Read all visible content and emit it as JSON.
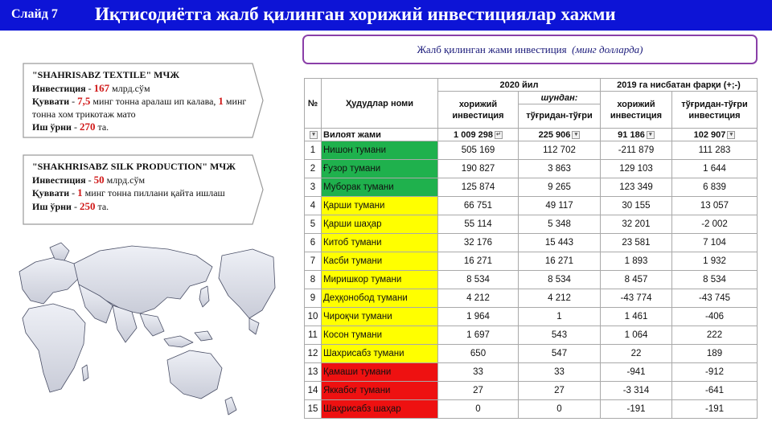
{
  "header": {
    "slide_label": "Слайд 7",
    "title": "Иқтисодиётга жалб қилинган хорижий инвестициялар хажми"
  },
  "subtitle": {
    "text": "Жалб қилинган жами инвестиция",
    "unit": "(минг долларда)"
  },
  "colors": {
    "header_bg": "#0d14d6",
    "green": "#1fb14d",
    "yellow": "#ffff00",
    "red": "#ee1111",
    "accent_number": "#d01818"
  },
  "callouts": [
    {
      "name": "\"SHAHRISABZ  TEXTILE\" МЧЖ",
      "invest_label": "Инвестиция",
      "invest_value": "167",
      "invest_unit": "млрд.сўм",
      "capacity_label": "Қуввати",
      "capacity_value": "7,5",
      "capacity_text": "минг тонна аралаш  ип калава,",
      "capacity_value2": "1",
      "capacity_text2": "минг тонна хом трикотаж мато",
      "jobs_label": "Иш ўрни",
      "jobs_value": "270",
      "jobs_unit": "та."
    },
    {
      "name": "\"SHAKHRISABZ  SILK PRODUCTION\" МЧЖ",
      "invest_label": "Инвестиция",
      "invest_value": "50",
      "invest_unit": "млрд.сўм",
      "capacity_label": "Қуввати",
      "capacity_value": "1",
      "capacity_text": "минг тонна пиллани қайта ишлаш",
      "jobs_label": "Иш ўрни",
      "jobs_value": "250",
      "jobs_unit": "та."
    }
  ],
  "map": {
    "icon": "world-map-icon"
  },
  "table": {
    "headers": {
      "no": "№",
      "region": "Ҳудудлар номи",
      "group_2020": "2020 йил",
      "group_diff": "2019 га нисбатан фарқи (+;-)",
      "foreign": "хорижий инвестиция",
      "of_which": "шундан:",
      "direct": "тўғридан-тўғри",
      "diff_foreign": "хорижий инвестиция",
      "diff_direct": "тўғридан-тўғри инвестиция"
    },
    "total": {
      "label": "Вилоят жами",
      "v1": "1 009 298",
      "v2": "225 906",
      "v3": "91 186",
      "v4": "102 907"
    },
    "rows": [
      {
        "n": "1",
        "name": "Нишон тумани",
        "v1": "505 169",
        "v2": "112 702",
        "v3": "-211 879",
        "v4": "111 283",
        "c": "g"
      },
      {
        "n": "2",
        "name": "Ғузор тумани",
        "v1": "190 827",
        "v2": "3 863",
        "v3": "129 103",
        "v4": "1 644",
        "c": "g"
      },
      {
        "n": "3",
        "name": "Муборак тумани",
        "v1": "125 874",
        "v2": "9 265",
        "v3": "123 349",
        "v4": "6 839",
        "c": "g"
      },
      {
        "n": "4",
        "name": "Қарши тумани",
        "v1": "66 751",
        "v2": "49 117",
        "v3": "30 155",
        "v4": "13 057",
        "c": "y"
      },
      {
        "n": "5",
        "name": "Қарши шаҳар",
        "v1": "55 114",
        "v2": "5 348",
        "v3": "32 201",
        "v4": "-2 002",
        "c": "y"
      },
      {
        "n": "6",
        "name": "Китоб тумани",
        "v1": "32 176",
        "v2": "15 443",
        "v3": "23 581",
        "v4": "7 104",
        "c": "y"
      },
      {
        "n": "7",
        "name": "Касби тумани",
        "v1": "16 271",
        "v2": "16 271",
        "v3": "1 893",
        "v4": "1 932",
        "c": "y"
      },
      {
        "n": "8",
        "name": "Миришкор тумани",
        "v1": "8 534",
        "v2": "8 534",
        "v3": "8 457",
        "v4": "8 534",
        "c": "y"
      },
      {
        "n": "9",
        "name": "Деҳқонобод тумани",
        "v1": "4 212",
        "v2": "4 212",
        "v3": "-43 774",
        "v4": "-43 745",
        "c": "y"
      },
      {
        "n": "10",
        "name": "Чироқчи тумани",
        "v1": "1 964",
        "v2": "1",
        "v3": "1 461",
        "v4": "-406",
        "c": "y"
      },
      {
        "n": "11",
        "name": "Косон тумани",
        "v1": "1 697",
        "v2": "543",
        "v3": "1 064",
        "v4": "222",
        "c": "y"
      },
      {
        "n": "12",
        "name": "Шахрисабз тумани",
        "v1": "650",
        "v2": "547",
        "v3": "22",
        "v4": "189",
        "c": "y"
      },
      {
        "n": "13",
        "name": "Қамаши тумани",
        "v1": "33",
        "v2": "33",
        "v3": "-941",
        "v4": "-912",
        "c": "r"
      },
      {
        "n": "14",
        "name": "Яккабоғ тумани",
        "v1": "27",
        "v2": "27",
        "v3": "-3 314",
        "v4": "-641",
        "c": "r"
      },
      {
        "n": "15",
        "name": "Шаҳрисабз шаҳар",
        "v1": "0",
        "v2": "0",
        "v3": "-191",
        "v4": "-191",
        "c": "r"
      }
    ]
  }
}
